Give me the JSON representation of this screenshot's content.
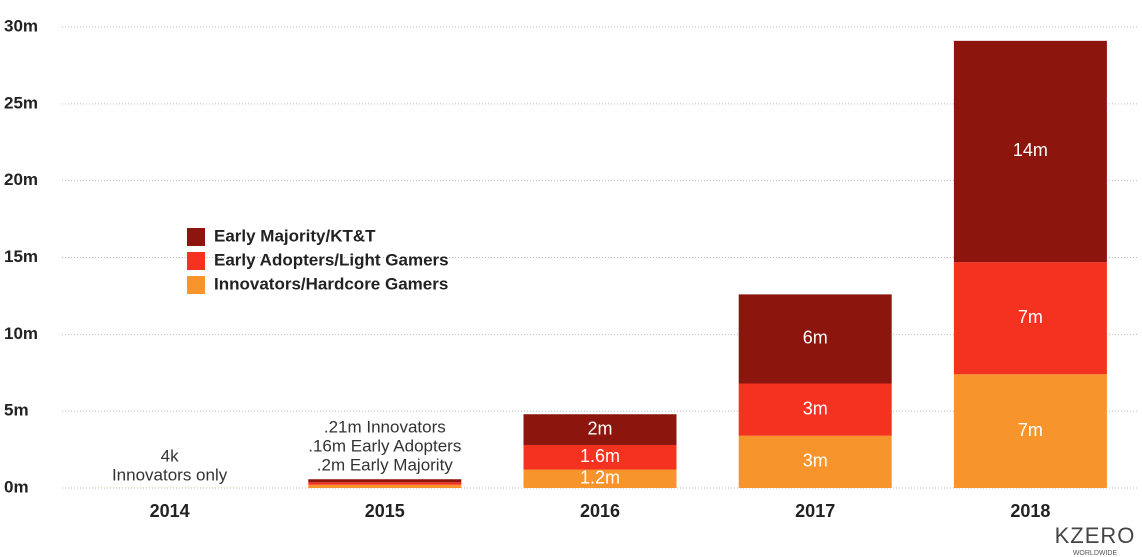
{
  "chart_data": {
    "type": "stacked_bar",
    "categories": [
      "2014",
      "2015",
      "2016",
      "2017",
      "2018"
    ],
    "series": [
      {
        "name": "Innovators/Hardcore Gamers",
        "color": "#f7952c",
        "values": [
          0.004,
          0.21,
          1.2,
          3.4,
          7.4
        ],
        "value_labels": [
          null,
          null,
          "1.2m",
          "3m",
          "7m"
        ]
      },
      {
        "name": "Early Adopters/Light Gamers",
        "color": "#f5311f",
        "values": [
          0,
          0.16,
          1.6,
          3.4,
          7.3
        ],
        "value_labels": [
          null,
          null,
          "1.6m",
          "3m",
          "7m"
        ]
      },
      {
        "name": "Early Majority/KT&T",
        "color": "#8c150d",
        "values": [
          0,
          0.2,
          2,
          5.8,
          14.4
        ],
        "value_labels": [
          null,
          null,
          "2m",
          "6m",
          "14m"
        ]
      }
    ],
    "ylim": [
      0,
      30
    ],
    "yticks": [
      {
        "value": 0,
        "label": "0m"
      },
      {
        "value": 5,
        "label": "5m"
      },
      {
        "value": 10,
        "label": "10m"
      },
      {
        "value": 15,
        "label": "15m"
      },
      {
        "value": 20,
        "label": "20m"
      },
      {
        "value": 25,
        "label": "25m"
      },
      {
        "value": 30,
        "label": "30m"
      }
    ],
    "grid": true,
    "legend": "upper left",
    "annotations": [
      {
        "category": 0,
        "lines": [
          "4k",
          "Innovators only"
        ]
      },
      {
        "category": 1,
        "lines": [
          ".21m Innovators",
          ".16m Early Adopters",
          ".2m Early Majority"
        ]
      }
    ],
    "logo": {
      "text": "KZERO",
      "subtitle": "WORLDWIDE"
    }
  }
}
